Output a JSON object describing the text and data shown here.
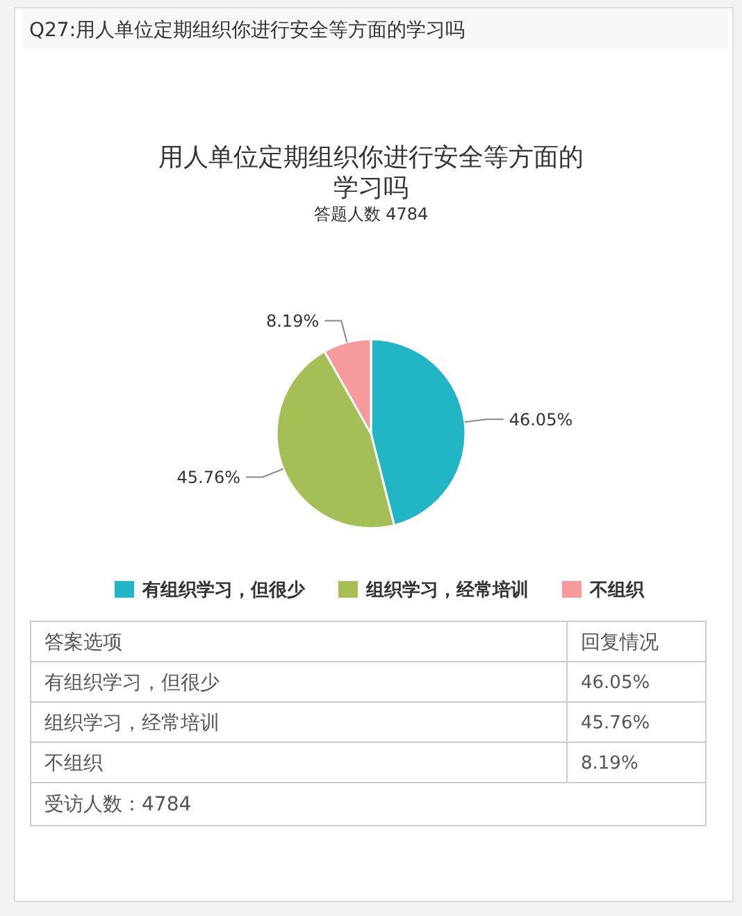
{
  "chart_data": {
    "type": "pie",
    "title": "用人单位定期组织你进行安全等方面的学习吗",
    "subtitle": "答题人数 4784",
    "categories": [
      "有组织学习，但很少",
      "组织学习，经常培训",
      "不组织"
    ],
    "values": [
      46.05,
      45.76,
      8.19
    ],
    "value_labels": [
      "46.05%",
      "45.76%",
      "8.19%"
    ],
    "colors": [
      "#22b5c6",
      "#a3bf56",
      "#f69a9b"
    ],
    "legend": "bottom",
    "annotations": [
      "Q27:用人单位定期组织你进行安全等方面的学习吗",
      "答案选项",
      "回复情况",
      "受访人数：4784"
    ]
  }
}
